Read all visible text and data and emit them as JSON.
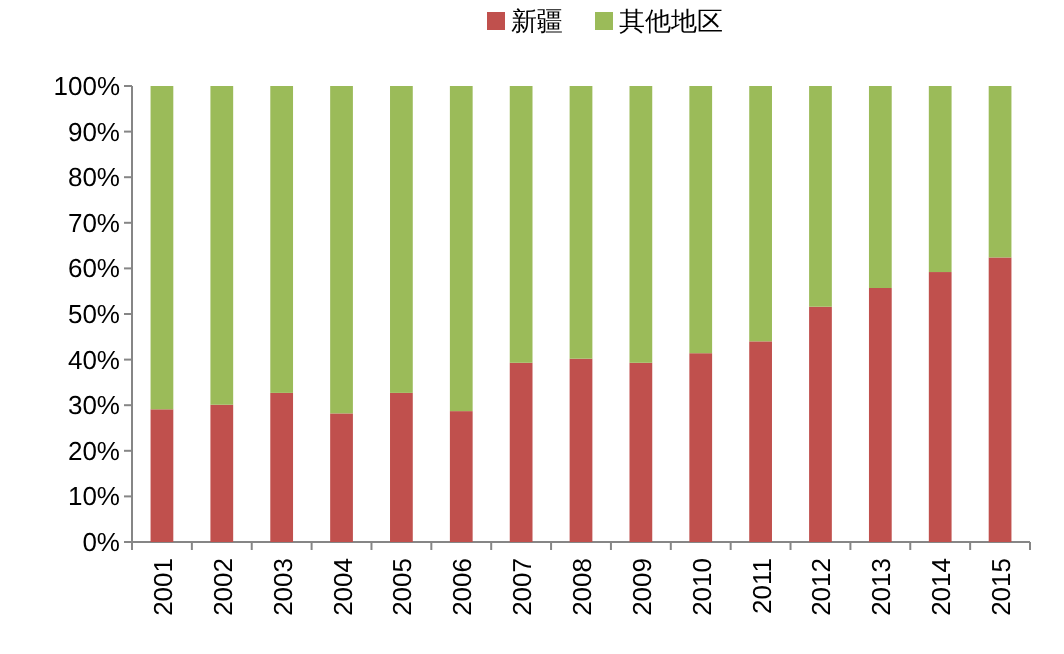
{
  "chart_data": {
    "type": "bar",
    "stacked": true,
    "categories": [
      "2001",
      "2002",
      "2003",
      "2004",
      "2005",
      "2006",
      "2007",
      "2008",
      "2009",
      "2010",
      "2011",
      "2012",
      "2013",
      "2014",
      "2015"
    ],
    "series": [
      {
        "name": "新疆",
        "color": "#c0504d",
        "values": [
          29.1,
          30.1,
          32.7,
          28.2,
          32.7,
          28.7,
          39.3,
          40.2,
          39.3,
          41.4,
          44.0,
          51.6,
          55.7,
          59.2,
          62.4
        ]
      },
      {
        "name": "其他地区",
        "color": "#9bbb59",
        "values": [
          70.9,
          69.9,
          67.3,
          71.8,
          67.3,
          71.3,
          60.7,
          59.8,
          60.7,
          58.6,
          56.0,
          48.4,
          44.3,
          40.8,
          37.6
        ]
      }
    ],
    "ylim": [
      0,
      100
    ],
    "yticks": [
      {
        "value": 0,
        "label": "0%"
      },
      {
        "value": 10,
        "label": "10%"
      },
      {
        "value": 20,
        "label": "20%"
      },
      {
        "value": 30,
        "label": "30%"
      },
      {
        "value": 40,
        "label": "40%"
      },
      {
        "value": 50,
        "label": "50%"
      },
      {
        "value": 60,
        "label": "60%"
      },
      {
        "value": 70,
        "label": "70%"
      },
      {
        "value": 80,
        "label": "80%"
      },
      {
        "value": 90,
        "label": "90%"
      },
      {
        "value": 100,
        "label": "100%"
      }
    ],
    "legend": "top"
  }
}
